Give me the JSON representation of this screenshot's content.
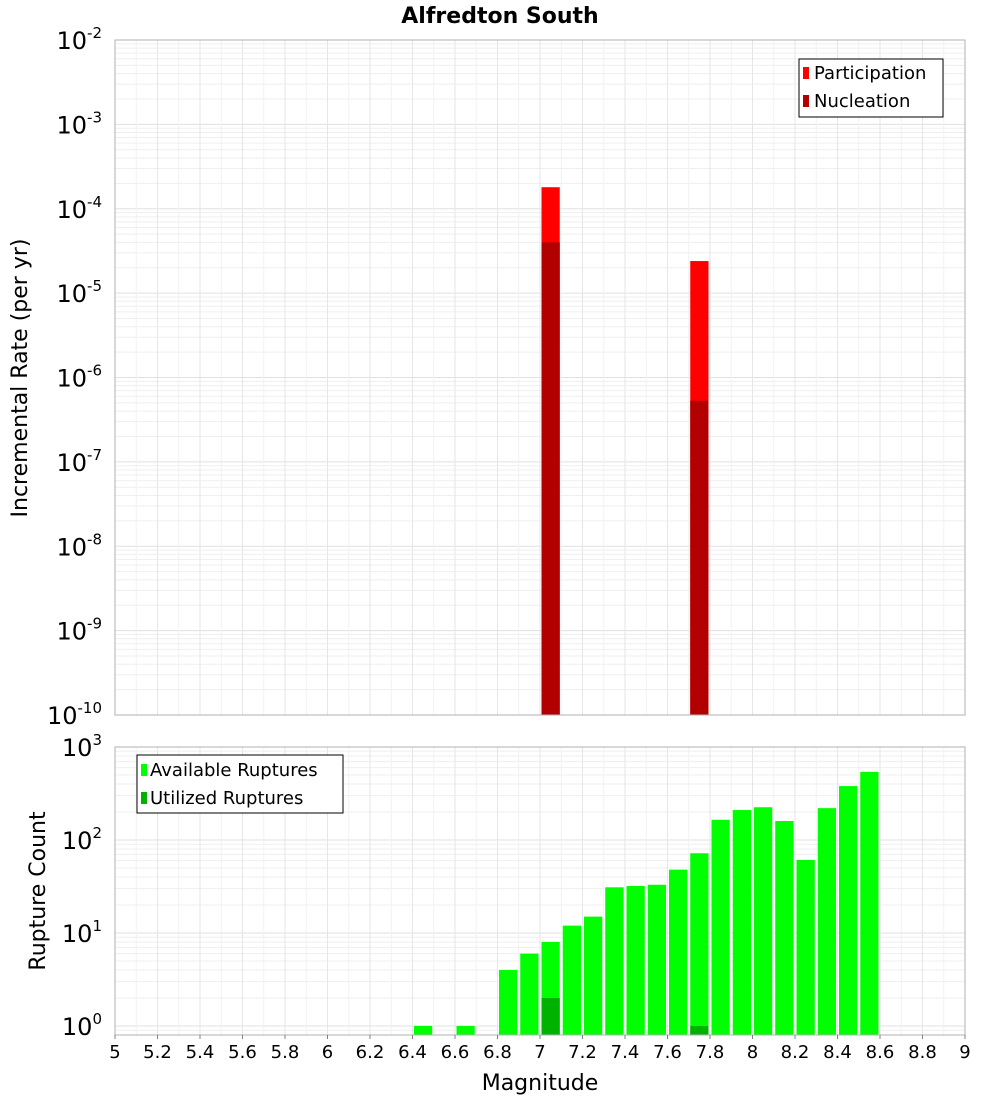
{
  "chart_data": [
    {
      "type": "bar",
      "title": "Alfredton South",
      "xlabel": "",
      "ylabel": "Incremental Rate (per yr)",
      "yscale": "log",
      "ylim": [
        1e-10,
        0.01
      ],
      "y_ticks": [
        {
          "mantissa": "10",
          "exp": "-10"
        },
        {
          "mantissa": "10",
          "exp": "-9"
        },
        {
          "mantissa": "10",
          "exp": "-8"
        },
        {
          "mantissa": "10",
          "exp": "-7"
        },
        {
          "mantissa": "10",
          "exp": "-6"
        },
        {
          "mantissa": "10",
          "exp": "-5"
        },
        {
          "mantissa": "10",
          "exp": "-4"
        },
        {
          "mantissa": "10",
          "exp": "-3"
        },
        {
          "mantissa": "10",
          "exp": "-2"
        }
      ],
      "xlim": [
        5,
        9
      ],
      "bin_width": 0.1,
      "grid": true,
      "legend_position": "top-right",
      "series": [
        {
          "name": "Participation",
          "color": "#ff0000",
          "x": [
            7.05,
            7.75
          ],
          "values": [
            0.00018,
            2.4e-05
          ]
        },
        {
          "name": "Nucleation",
          "color": "#b20000",
          "x": [
            7.05,
            7.75
          ],
          "values": [
            4e-05,
            5.3e-07
          ]
        }
      ]
    },
    {
      "type": "bar",
      "title": "",
      "xlabel": "Magnitude",
      "ylabel": "Rupture Count",
      "yscale": "log",
      "ylim": [
        0.8,
        1000
      ],
      "y_ticks": [
        {
          "mantissa": "10",
          "exp": "0"
        },
        {
          "mantissa": "10",
          "exp": "1"
        },
        {
          "mantissa": "10",
          "exp": "2"
        },
        {
          "mantissa": "10",
          "exp": "3"
        }
      ],
      "xlim": [
        5,
        9
      ],
      "x_ticks": [
        "5",
        "5.2",
        "5.4",
        "5.6",
        "5.8",
        "6",
        "6.2",
        "6.4",
        "6.6",
        "6.8",
        "7",
        "7.2",
        "7.4",
        "7.6",
        "7.8",
        "8",
        "8.2",
        "8.4",
        "8.6",
        "8.8",
        "9"
      ],
      "bin_width": 0.1,
      "grid": true,
      "legend_position": "top-left",
      "series": [
        {
          "name": "Available Ruptures",
          "color": "#00ff00",
          "x": [
            6.45,
            6.65,
            6.85,
            6.95,
            7.05,
            7.15,
            7.25,
            7.35,
            7.45,
            7.55,
            7.65,
            7.75,
            7.85,
            7.95,
            8.05,
            8.15,
            8.25,
            8.35,
            8.45,
            8.55
          ],
          "values": [
            1,
            1,
            4,
            6,
            8,
            12,
            15,
            31,
            32,
            33,
            48,
            72,
            165,
            210,
            225,
            160,
            61,
            220,
            380,
            540
          ]
        },
        {
          "name": "Utilized Ruptures",
          "color": "#00b200",
          "x": [
            7.05,
            7.75
          ],
          "values": [
            2,
            1
          ]
        }
      ]
    }
  ]
}
